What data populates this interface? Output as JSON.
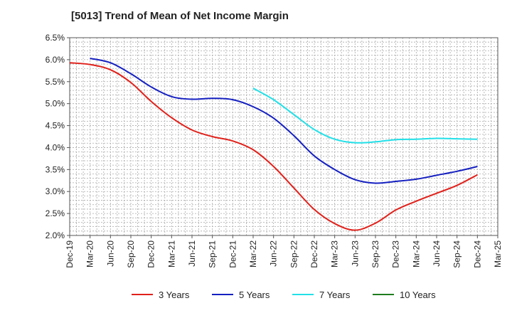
{
  "chart_data": {
    "type": "line",
    "title": "[5013]  Trend of Mean of Net Income Margin",
    "xlabel": "",
    "ylabel": "",
    "x_ticks": [
      "Dec-19",
      "Mar-20",
      "Jun-20",
      "Sep-20",
      "Dec-20",
      "Mar-21",
      "Jun-21",
      "Sep-21",
      "Dec-21",
      "Mar-22",
      "Jun-22",
      "Sep-22",
      "Dec-22",
      "Mar-23",
      "Jun-23",
      "Sep-23",
      "Dec-23",
      "Mar-24",
      "Jun-24",
      "Sep-24",
      "Dec-24",
      "Mar-25"
    ],
    "y_ticks": [
      "2.0%",
      "2.5%",
      "3.0%",
      "3.5%",
      "4.0%",
      "4.5%",
      "5.0%",
      "5.5%",
      "6.0%",
      "6.5%"
    ],
    "ylim": [
      2.0,
      6.5
    ],
    "grid": true,
    "legend_position": "bottom",
    "series": [
      {
        "name": "3 Years",
        "color": "#e0211b",
        "x": [
          "Dec-19",
          "Mar-20",
          "Jun-20",
          "Sep-20",
          "Dec-20",
          "Mar-21",
          "Jun-21",
          "Sep-21",
          "Dec-21",
          "Mar-22",
          "Jun-22",
          "Sep-22",
          "Dec-22",
          "Mar-23",
          "Jun-23",
          "Sep-23",
          "Dec-23",
          "Mar-24",
          "Jun-24",
          "Sep-24",
          "Dec-24"
        ],
        "values": [
          5.93,
          5.89,
          5.77,
          5.48,
          5.05,
          4.68,
          4.4,
          4.25,
          4.15,
          3.95,
          3.57,
          3.08,
          2.59,
          2.27,
          2.12,
          2.28,
          2.58,
          2.78,
          2.96,
          3.14,
          3.38
        ]
      },
      {
        "name": "5 Years",
        "color": "#1520c0",
        "x": [
          "Mar-20",
          "Jun-20",
          "Sep-20",
          "Dec-20",
          "Mar-21",
          "Jun-21",
          "Sep-21",
          "Dec-21",
          "Mar-22",
          "Jun-22",
          "Sep-22",
          "Dec-22",
          "Mar-23",
          "Jun-23",
          "Sep-23",
          "Dec-23",
          "Mar-24",
          "Jun-24",
          "Sep-24",
          "Dec-24"
        ],
        "values": [
          6.03,
          5.93,
          5.68,
          5.38,
          5.16,
          5.1,
          5.12,
          5.09,
          4.93,
          4.67,
          4.27,
          3.81,
          3.5,
          3.27,
          3.19,
          3.23,
          3.28,
          3.37,
          3.46,
          3.57
        ]
      },
      {
        "name": "7 Years",
        "color": "#22e0e8",
        "x": [
          "Mar-22",
          "Jun-22",
          "Sep-22",
          "Dec-22",
          "Mar-23",
          "Jun-23",
          "Sep-23",
          "Dec-23",
          "Mar-24",
          "Jun-24",
          "Sep-24",
          "Dec-24"
        ],
        "values": [
          5.35,
          5.09,
          4.75,
          4.41,
          4.19,
          4.11,
          4.13,
          4.18,
          4.19,
          4.21,
          4.2,
          4.19
        ]
      },
      {
        "name": "10 Years",
        "color": "#1e7d1e",
        "x": [],
        "values": []
      }
    ]
  }
}
